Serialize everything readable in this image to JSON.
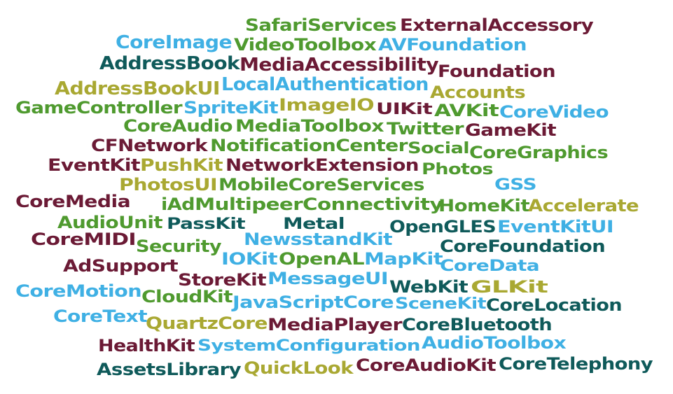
{
  "palette": {
    "maroon": "#6b1a35",
    "green": "#4f9a2f",
    "blue": "#3fb0e4",
    "teal": "#0f5a5a",
    "olive": "#a9a832"
  },
  "words": [
    {
      "text": "SafariServices",
      "color": "green"
    },
    {
      "text": "ExternalAccessory",
      "color": "maroon"
    },
    {
      "text": "CoreImage",
      "color": "blue"
    },
    {
      "text": "VideoToolbox",
      "color": "green"
    },
    {
      "text": "AVFoundation",
      "color": "blue"
    },
    {
      "text": "AddressBook",
      "color": "teal"
    },
    {
      "text": "MediaAccessibility",
      "color": "maroon"
    },
    {
      "text": "Foundation",
      "color": "maroon"
    },
    {
      "text": "AddressBookUI",
      "color": "olive"
    },
    {
      "text": "LocalAuthentication",
      "color": "blue"
    },
    {
      "text": "Accounts",
      "color": "olive"
    },
    {
      "text": "GameController",
      "color": "green"
    },
    {
      "text": "SpriteKit",
      "color": "blue"
    },
    {
      "text": "ImageIO",
      "color": "olive"
    },
    {
      "text": "UIKit",
      "color": "maroon"
    },
    {
      "text": "AVKit",
      "color": "green"
    },
    {
      "text": "CoreVideo",
      "color": "blue"
    },
    {
      "text": "CoreAudio",
      "color": "green"
    },
    {
      "text": "MediaToolbox",
      "color": "green"
    },
    {
      "text": "Twitter",
      "color": "green"
    },
    {
      "text": "GameKit",
      "color": "maroon"
    },
    {
      "text": "CFNetwork",
      "color": "maroon"
    },
    {
      "text": "NotificationCenter",
      "color": "green"
    },
    {
      "text": "Social",
      "color": "green"
    },
    {
      "text": "CoreGraphics",
      "color": "green"
    },
    {
      "text": "EventKit",
      "color": "maroon"
    },
    {
      "text": "PushKit",
      "color": "olive"
    },
    {
      "text": "NetworkExtension",
      "color": "maroon"
    },
    {
      "text": "Photos",
      "color": "green"
    },
    {
      "text": "PhotosUI",
      "color": "olive"
    },
    {
      "text": "MobileCoreServices",
      "color": "green"
    },
    {
      "text": "GSS",
      "color": "blue"
    },
    {
      "text": "CoreMedia",
      "color": "maroon"
    },
    {
      "text": "iAd",
      "color": "green"
    },
    {
      "text": "MultipeerConnectivity",
      "color": "green"
    },
    {
      "text": "HomeKit",
      "color": "green"
    },
    {
      "text": "Accelerate",
      "color": "olive"
    },
    {
      "text": "AudioUnit",
      "color": "green"
    },
    {
      "text": "PassKit",
      "color": "teal"
    },
    {
      "text": "Metal",
      "color": "teal"
    },
    {
      "text": "OpenGLES",
      "color": "teal"
    },
    {
      "text": "EventKitUI",
      "color": "blue"
    },
    {
      "text": "CoreMIDI",
      "color": "maroon"
    },
    {
      "text": "Security",
      "color": "green"
    },
    {
      "text": "NewsstandKit",
      "color": "blue"
    },
    {
      "text": "CoreFoundation",
      "color": "teal"
    },
    {
      "text": "AdSupport",
      "color": "maroon"
    },
    {
      "text": "IOKit",
      "color": "blue"
    },
    {
      "text": "OpenAL",
      "color": "green"
    },
    {
      "text": "MapKit",
      "color": "blue"
    },
    {
      "text": "CoreData",
      "color": "blue"
    },
    {
      "text": "CoreMotion",
      "color": "blue"
    },
    {
      "text": "StoreKit",
      "color": "maroon"
    },
    {
      "text": "MessageUI",
      "color": "blue"
    },
    {
      "text": "WebKit",
      "color": "teal"
    },
    {
      "text": "GLKit",
      "color": "olive"
    },
    {
      "text": "CloudKit",
      "color": "green"
    },
    {
      "text": "JavaScriptCore",
      "color": "blue"
    },
    {
      "text": "SceneKit",
      "color": "blue"
    },
    {
      "text": "CoreLocation",
      "color": "teal"
    },
    {
      "text": "CoreText",
      "color": "blue"
    },
    {
      "text": "QuartzCore",
      "color": "olive"
    },
    {
      "text": "MediaPlayer",
      "color": "maroon"
    },
    {
      "text": "CoreBluetooth",
      "color": "teal"
    },
    {
      "text": "HealthKit",
      "color": "maroon"
    },
    {
      "text": "SystemConfiguration",
      "color": "blue"
    },
    {
      "text": "AudioToolbox",
      "color": "blue"
    },
    {
      "text": "AssetsLibrary",
      "color": "teal"
    },
    {
      "text": "QuickLook",
      "color": "olive"
    },
    {
      "text": "CoreAudioKit",
      "color": "maroon"
    },
    {
      "text": "CoreTelephony",
      "color": "teal"
    }
  ]
}
